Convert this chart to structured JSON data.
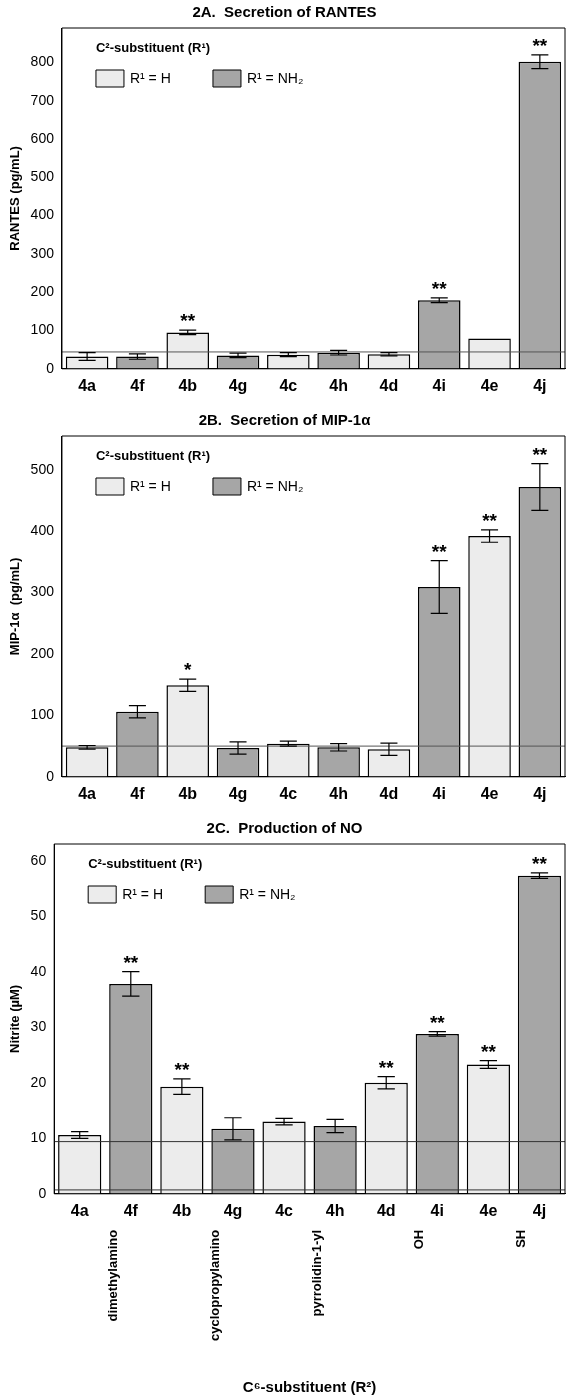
{
  "chart_data": [
    {
      "type": "bar",
      "title": "2A.  Secretion of RANTES",
      "ylabel": "RANTES (pg/mL)",
      "legend_title": "C²-substituent (R¹)",
      "legend": "top left",
      "grid": false,
      "categories": [
        "4a",
        "4f",
        "4b",
        "4g",
        "4c",
        "4h",
        "4d",
        "4i",
        "4e",
        "4j"
      ],
      "series": [
        {
          "name": "R¹ = H",
          "color": "#ececec",
          "values": [
            32,
            null,
            95,
            null,
            37,
            null,
            38,
            null,
            79,
            null
          ],
          "errors": [
            10,
            null,
            6,
            null,
            5,
            null,
            4,
            null,
            null,
            null
          ]
        },
        {
          "name": "R¹ = NH₂",
          "color": "#a6a6a6",
          "values": [
            null,
            32,
            null,
            35,
            null,
            42,
            null,
            179,
            null,
            802
          ],
          "errors": [
            null,
            7,
            null,
            6,
            null,
            6,
            null,
            6,
            null,
            18
          ]
        }
      ],
      "ylim": [
        0,
        890
      ],
      "yticks": [
        0,
        100,
        200,
        300,
        400,
        500,
        600,
        700,
        800
      ],
      "ref_lines": [
        {
          "axis": "y",
          "value": 44,
          "label": null,
          "color": "#555555"
        }
      ],
      "annotations": [
        {
          "text": "**",
          "x": "4b",
          "y": 101
        },
        {
          "text": "**",
          "x": "4i",
          "y": 185
        },
        {
          "text": "**",
          "x": "4j",
          "y": 820
        }
      ]
    },
    {
      "type": "bar",
      "title": "2B.  Secretion of MIP-1α",
      "ylabel": "MIP-1α  (pg/mL)",
      "legend_title": "C²-substituent (R¹)",
      "legend": "top left",
      "grid": false,
      "categories": [
        "4a",
        "4f",
        "4b",
        "4g",
        "4c",
        "4h",
        "4d",
        "4i",
        "4e",
        "4j"
      ],
      "series": [
        {
          "name": "R¹ = H",
          "color": "#ececec",
          "values": [
            48,
            null,
            149,
            null,
            54,
            null,
            45,
            null,
            392,
            null
          ],
          "errors": [
            3,
            null,
            10,
            null,
            4,
            null,
            10,
            null,
            10,
            null
          ]
        },
        {
          "name": "R¹ = NH₂",
          "color": "#a6a6a6",
          "values": [
            null,
            106,
            null,
            47,
            null,
            48,
            null,
            309,
            null,
            472
          ],
          "errors": [
            null,
            10,
            null,
            10,
            null,
            6,
            null,
            43,
            null,
            38
          ]
        }
      ],
      "ylim": [
        0,
        555
      ],
      "yticks": [
        0,
        100,
        200,
        300,
        400,
        500
      ],
      "ref_lines": [
        {
          "axis": "y",
          "value": 50,
          "label": null,
          "color": "#555555"
        }
      ],
      "annotations": [
        {
          "text": "*",
          "x": "4b",
          "y": 159
        },
        {
          "text": "**",
          "x": "4i",
          "y": 352
        },
        {
          "text": "**",
          "x": "4e",
          "y": 402
        },
        {
          "text": "**",
          "x": "4j",
          "y": 510
        }
      ]
    },
    {
      "type": "bar",
      "title": "2C.  Production of NO",
      "ylabel": "Nitrite (µM)",
      "xlabel": "C⁶-substituent (R²)",
      "legend_title": "C²-substituent (R¹)",
      "legend": "top left",
      "grid": false,
      "categories": [
        "4a",
        "4f",
        "4b",
        "4g",
        "4c",
        "4h",
        "4d",
        "4i",
        "4e",
        "4j"
      ],
      "series": [
        {
          "name": "R¹ = H",
          "color": "#ececec",
          "values": [
            10.6,
            null,
            19.3,
            null,
            13.0,
            null,
            20.0,
            null,
            23.3,
            null
          ],
          "errors": [
            0.6,
            null,
            1.4,
            null,
            0.6,
            null,
            1.1,
            null,
            0.7,
            null
          ]
        },
        {
          "name": "R¹ = NH₂",
          "color": "#a6a6a6",
          "values": [
            null,
            37.8,
            null,
            11.7,
            null,
            12.2,
            null,
            28.8,
            null,
            57.3
          ],
          "errors": [
            null,
            2.2,
            null,
            2.0,
            null,
            1.2,
            null,
            0.4,
            null,
            0.5
          ]
        }
      ],
      "ylim": [
        0,
        63
      ],
      "yticks": [
        0,
        10,
        20,
        30,
        40,
        50,
        60
      ],
      "ref_lines": [
        {
          "axis": "y",
          "value": 9.4,
          "label": null,
          "color": "#333333"
        },
        {
          "axis": "y",
          "value": 0.7,
          "label": null,
          "color": "#333333"
        }
      ],
      "annotations": [
        {
          "text": "**",
          "x": "4f",
          "y": 40
        },
        {
          "text": "**",
          "x": "4b",
          "y": 20.7
        },
        {
          "text": "**",
          "x": "4d",
          "y": 21.1
        },
        {
          "text": "**",
          "x": "4i",
          "y": 29.2
        },
        {
          "text": "**",
          "x": "4e",
          "y": 24.0
        },
        {
          "text": "**",
          "x": "4j",
          "y": 57.8
        },
        "dimethylamino",
        "cyclopropylamino",
        "pyrrolidin-1-yl",
        "OH",
        "SH"
      ]
    }
  ]
}
